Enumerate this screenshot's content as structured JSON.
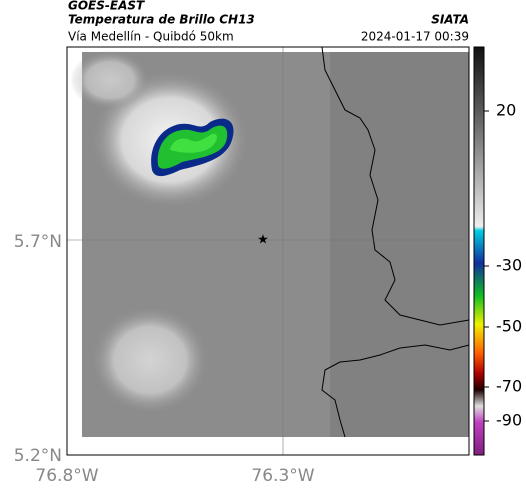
{
  "header": {
    "satellite": "GOES-EAST",
    "product": "Temperatura de Brillo CH13",
    "source": "SIATA",
    "route": "Vía Medellín - Quibdó 50km",
    "timestamp": "2024-01-17 00:39"
  },
  "map": {
    "lat_labels": [
      "5.7°N",
      "5.2°N"
    ],
    "lon_labels": [
      "76.8°W",
      "76.3°W"
    ]
  },
  "colorbar": {
    "labels": [
      "20",
      "-30",
      "-50",
      "-70",
      "-90"
    ]
  }
}
